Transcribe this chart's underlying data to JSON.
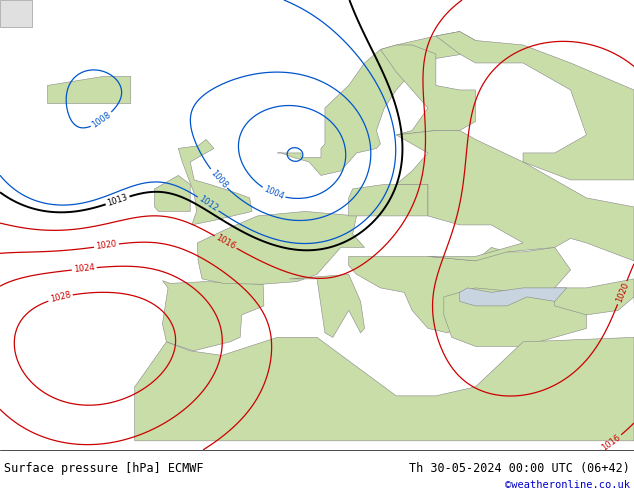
{
  "title_left": "Surface pressure [hPa] ECMWF",
  "title_right": "Th 30-05-2024 00:00 UTC (06+42)",
  "copyright": "©weatheronline.co.uk",
  "bg_ocean": "#c8d4df",
  "bg_land": "#c8dda8",
  "bg_land_east": "#c8dda8",
  "contour_black": "#000000",
  "contour_red": "#cc0000",
  "contour_blue": "#0055cc",
  "footer_text": "#000000",
  "copyright_color": "#0000cc",
  "fig_width": 6.34,
  "fig_height": 4.9,
  "dpi": 100
}
